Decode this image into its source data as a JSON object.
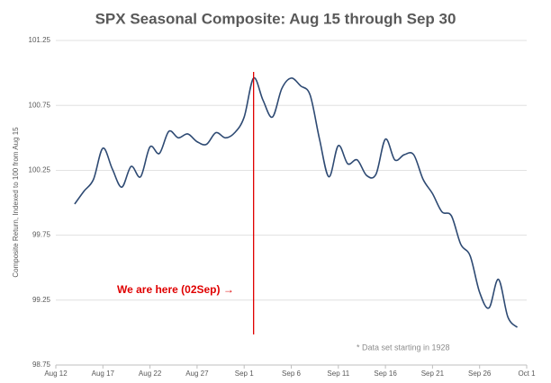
{
  "chart_data": {
    "type": "line",
    "title": "SPX Seasonal Composite: Aug 15 through Sep 30",
    "y_label": "Composite Return, Indexed to 100 from Aug 15",
    "annotation": "We are here (02Sep) →",
    "footnote": "* Data set starting in 1928",
    "marker_x": "Sep 2",
    "marker_color": "#e00000",
    "x": [
      "Aug 14",
      "Aug 15",
      "Aug 16",
      "Aug 17",
      "Aug 18",
      "Aug 19",
      "Aug 20",
      "Aug 21",
      "Aug 22",
      "Aug 23",
      "Aug 24",
      "Aug 25",
      "Aug 26",
      "Aug 27",
      "Aug 28",
      "Aug 29",
      "Aug 30",
      "Aug 31",
      "Sep 1",
      "Sep 2",
      "Sep 3",
      "Sep 4",
      "Sep 5",
      "Sep 6",
      "Sep 7",
      "Sep 8",
      "Sep 9",
      "Sep 10",
      "Sep 11",
      "Sep 12",
      "Sep 13",
      "Sep 14",
      "Sep 15",
      "Sep 16",
      "Sep 17",
      "Sep 18",
      "Sep 19",
      "Sep 20",
      "Sep 21",
      "Sep 22",
      "Sep 23",
      "Sep 24",
      "Sep 25",
      "Sep 26",
      "Sep 27",
      "Sep 28",
      "Sep 29",
      "Sep 30"
    ],
    "series": [
      {
        "name": "SPX",
        "color": "#2e4a73",
        "values": [
          99.99,
          100.09,
          100.18,
          100.42,
          100.26,
          100.12,
          100.28,
          100.2,
          100.43,
          100.38,
          100.55,
          100.5,
          100.53,
          100.47,
          100.45,
          100.54,
          100.5,
          100.54,
          100.66,
          100.96,
          100.79,
          100.66,
          100.88,
          100.96,
          100.9,
          100.83,
          100.49,
          100.2,
          100.44,
          100.3,
          100.33,
          100.21,
          100.22,
          100.49,
          100.33,
          100.37,
          100.37,
          100.18,
          100.07,
          99.93,
          99.9,
          99.68,
          99.59,
          99.31,
          99.19,
          99.41,
          99.12,
          99.04
        ]
      }
    ],
    "xlim": [
      "Aug 12",
      "Oct 1"
    ],
    "xticks": [
      "Aug 12",
      "Aug 17",
      "Aug 22",
      "Aug 27",
      "Sep 1",
      "Sep 6",
      "Sep 11",
      "Sep 16",
      "Sep 21",
      "Sep 26",
      "Oct 1"
    ],
    "ylim": [
      98.75,
      101.25
    ],
    "yticks": [
      98.75,
      99.25,
      99.75,
      100.25,
      100.75,
      101.25
    ],
    "grid": true
  }
}
